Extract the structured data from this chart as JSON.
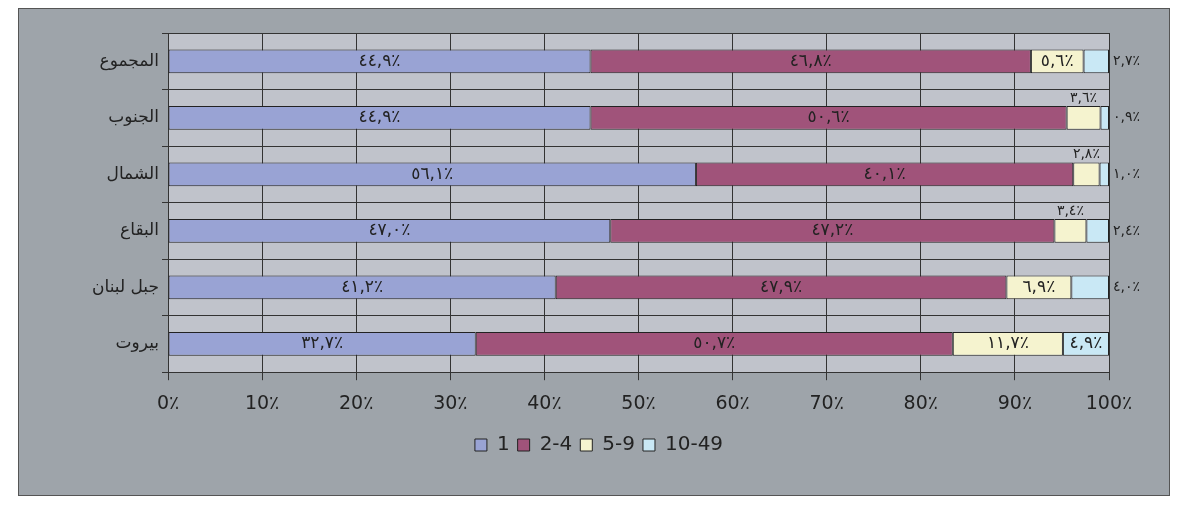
{
  "chart_data": {
    "type": "bar",
    "orientation": "horizontal",
    "stacked": true,
    "categories": [
      "المجموع",
      "الجنوب",
      "الشمال",
      "البقاع",
      "جبل لبنان",
      "بيروت"
    ],
    "series": [
      {
        "name": "1",
        "color": "#99a3d4",
        "values": [
          44.9,
          44.9,
          56.1,
          47.0,
          41.2,
          32.7
        ],
        "value_labels": [
          "٤٤,٩٪",
          "٤٤,٩٪",
          "٥٦,١٪",
          "٤٧,٠٪",
          "٤١,٢٪",
          "٣٢,٧٪"
        ]
      },
      {
        "name": "2-4",
        "color": "#a0537a",
        "values": [
          46.8,
          50.6,
          40.1,
          47.2,
          47.9,
          50.7
        ],
        "value_labels": [
          "٤٦,٨٪",
          "٥٠,٦٪",
          "٤٠,١٪",
          "٤٧,٢٪",
          "٤٧,٩٪",
          "٥٠,٧٪"
        ]
      },
      {
        "name": "5-9",
        "color": "#f5f3cf",
        "values": [
          5.6,
          3.6,
          2.8,
          3.4,
          6.9,
          11.7
        ],
        "value_labels": [
          "٥,٦٪",
          "٣,٦٪",
          "٢,٨٪",
          "٣,٤٪",
          "٦,٩٪",
          "١١,٧٪"
        ]
      },
      {
        "name": "10-49",
        "color": "#c9e8f5",
        "values": [
          2.7,
          0.9,
          1.0,
          2.4,
          4.0,
          4.9
        ],
        "value_labels": [
          "٢,٧٪",
          "٠,٩٪",
          "١,٠٪",
          "٢,٤٪",
          "٤,٠٪",
          "٤,٩٪"
        ]
      }
    ],
    "xlim": [
      0,
      100
    ],
    "xticks": [
      {
        "value": 0,
        "label": "0٪"
      },
      {
        "value": 10,
        "label": "10٪"
      },
      {
        "value": 20,
        "label": "20٪"
      },
      {
        "value": 30,
        "label": "30٪"
      },
      {
        "value": 40,
        "label": "40٪"
      },
      {
        "value": 50,
        "label": "50٪"
      },
      {
        "value": 60,
        "label": "60٪"
      },
      {
        "value": 70,
        "label": "70٪"
      },
      {
        "value": 80,
        "label": "80٪"
      },
      {
        "value": 90,
        "label": "90٪"
      },
      {
        "value": 100,
        "label": "100٪"
      }
    ],
    "grid": true,
    "legend": "bottom"
  }
}
